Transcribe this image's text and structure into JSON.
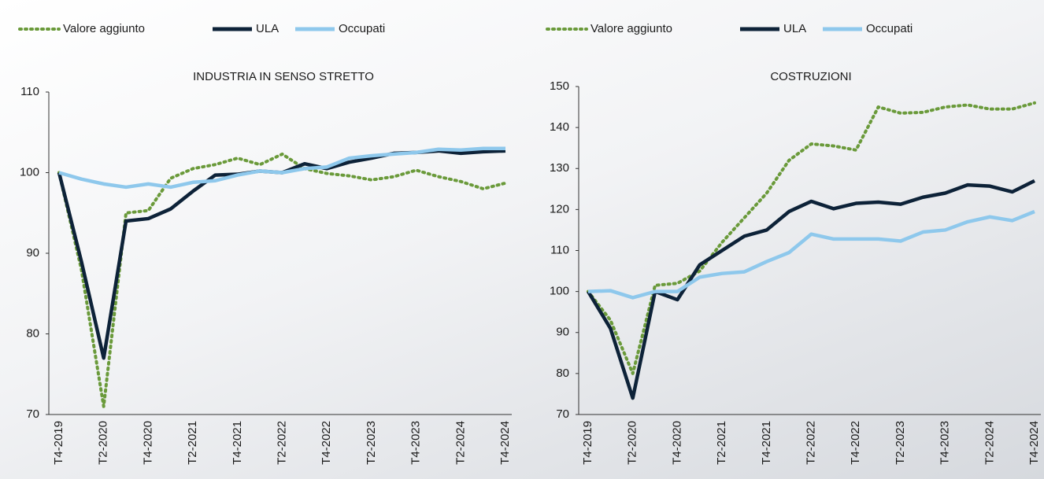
{
  "chart_data": [
    {
      "type": "line",
      "title": "INDUSTRIA IN SENSO STRETTO",
      "categories": [
        "T4-2019",
        null,
        "T2-2020",
        null,
        "T4-2020",
        null,
        "T2-2021",
        null,
        "T4-2021",
        null,
        "T2-2022",
        null,
        "T4-2022",
        null,
        "T2-2023",
        null,
        "T4-2023",
        null,
        "T2-2024",
        null,
        "T4-2024"
      ],
      "ylim": [
        70,
        110
      ],
      "yticks": [
        70,
        80,
        90,
        100,
        110
      ],
      "series": [
        {
          "name": "Valore aggiunto",
          "color": "#6a9a3a",
          "values": [
            100,
            88,
            71,
            95,
            95.3,
            99.3,
            100.5,
            101,
            101.8,
            101,
            102.3,
            100.5,
            99.9,
            99.6,
            99.1,
            99.5,
            100.3,
            99.5,
            98.9,
            98,
            98.7
          ]
        },
        {
          "name": "ULA",
          "color": "#0d2238",
          "values": [
            100,
            89,
            77,
            94,
            94.3,
            95.5,
            97.7,
            99.7,
            99.8,
            100.2,
            100,
            101.1,
            100.5,
            101.3,
            101.8,
            102.4,
            102.5,
            102.7,
            102.4,
            102.6,
            102.7
          ]
        },
        {
          "name": "Occupati",
          "color": "#8ec8ec",
          "values": [
            100,
            99.2,
            98.6,
            98.2,
            98.6,
            98.2,
            98.8,
            99,
            99.7,
            100.2,
            100,
            100.5,
            100.7,
            101.8,
            102.1,
            102.3,
            102.5,
            102.9,
            102.8,
            103,
            103
          ]
        }
      ]
    },
    {
      "type": "line",
      "title": "COSTRUZIONI",
      "categories": [
        "T4-2019",
        null,
        "T2-2020",
        null,
        "T4-2020",
        null,
        "T2-2021",
        null,
        "T4-2021",
        null,
        "T2-2022",
        null,
        "T4-2022",
        null,
        "T2-2023",
        null,
        "T4-2023",
        null,
        "T2-2024",
        null,
        "T4-2024"
      ],
      "ylim": [
        70,
        150
      ],
      "yticks": [
        70,
        80,
        90,
        100,
        110,
        120,
        130,
        140,
        150
      ],
      "series": [
        {
          "name": "Valore aggiunto",
          "color": "#6a9a3a",
          "values": [
            100,
            93,
            80,
            101.5,
            102,
            105,
            112,
            118,
            124,
            132,
            136,
            135.5,
            134.5,
            145,
            143.5,
            143.7,
            145,
            145.5,
            144.5,
            144.5,
            146
          ]
        },
        {
          "name": "ULA",
          "color": "#0d2238",
          "values": [
            100,
            91,
            74,
            100,
            98,
            106.5,
            110,
            113.5,
            115,
            119.5,
            122,
            120.2,
            121.5,
            121.8,
            121.3,
            123,
            124,
            126,
            125.7,
            124.3,
            127
          ]
        },
        {
          "name": "Occupati",
          "color": "#8ec8ec",
          "values": [
            100,
            100.2,
            98.5,
            100,
            100,
            103.5,
            104.4,
            104.8,
            107.3,
            109.5,
            114,
            112.8,
            112.8,
            112.8,
            112.3,
            114.5,
            115,
            117,
            118.2,
            117.3,
            119.5
          ]
        }
      ]
    }
  ]
}
